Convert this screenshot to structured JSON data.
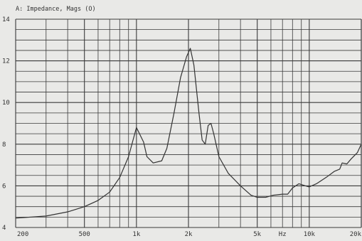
{
  "chart_data": {
    "type": "line",
    "title": "A: Impedance, Mags (O)",
    "x_scale": "log",
    "xlim": [
      200,
      20000
    ],
    "ylim": [
      4,
      14
    ],
    "y_ticks": [
      4,
      6,
      8,
      10,
      12,
      14
    ],
    "x_tick_labels": [
      {
        "value": 200,
        "label": "200"
      },
      {
        "value": 500,
        "label": "500"
      },
      {
        "value": 1000,
        "label": "1k"
      },
      {
        "value": 2000,
        "label": "2k"
      },
      {
        "value": 5000,
        "label": "5k"
      },
      {
        "value": 7000,
        "label": "Hz"
      },
      {
        "value": 10000,
        "label": "10k"
      },
      {
        "value": 20000,
        "label": "20k"
      }
    ],
    "grid": true,
    "colors": {
      "background": "#e9e9e7",
      "grid": "#3a3a3a",
      "curve": "#333333"
    },
    "series": [
      {
        "name": "",
        "points": [
          [
            200,
            4.45
          ],
          [
            300,
            4.55
          ],
          [
            400,
            4.75
          ],
          [
            500,
            5.0
          ],
          [
            600,
            5.3
          ],
          [
            700,
            5.7
          ],
          [
            800,
            6.4
          ],
          [
            900,
            7.4
          ],
          [
            1000,
            8.8
          ],
          [
            1100,
            8.1
          ],
          [
            1150,
            7.4
          ],
          [
            1250,
            7.1
          ],
          [
            1400,
            7.2
          ],
          [
            1500,
            7.8
          ],
          [
            1650,
            9.5
          ],
          [
            1800,
            11.2
          ],
          [
            1950,
            12.2
          ],
          [
            2050,
            12.6
          ],
          [
            2150,
            11.8
          ],
          [
            2300,
            9.5
          ],
          [
            2400,
            8.2
          ],
          [
            2500,
            8.0
          ],
          [
            2600,
            8.9
          ],
          [
            2700,
            9.0
          ],
          [
            2800,
            8.5
          ],
          [
            3000,
            7.4
          ],
          [
            3400,
            6.6
          ],
          [
            4000,
            6.0
          ],
          [
            4600,
            5.55
          ],
          [
            5000,
            5.45
          ],
          [
            5600,
            5.45
          ],
          [
            6200,
            5.55
          ],
          [
            7000,
            5.6
          ],
          [
            7500,
            5.6
          ],
          [
            8000,
            5.9
          ],
          [
            8700,
            6.1
          ],
          [
            9500,
            6.0
          ],
          [
            10000,
            5.95
          ],
          [
            11000,
            6.1
          ],
          [
            12500,
            6.4
          ],
          [
            14000,
            6.7
          ],
          [
            15000,
            6.8
          ],
          [
            15500,
            7.1
          ],
          [
            16500,
            7.05
          ],
          [
            17500,
            7.3
          ],
          [
            19000,
            7.6
          ],
          [
            20000,
            8.0
          ]
        ]
      }
    ]
  }
}
